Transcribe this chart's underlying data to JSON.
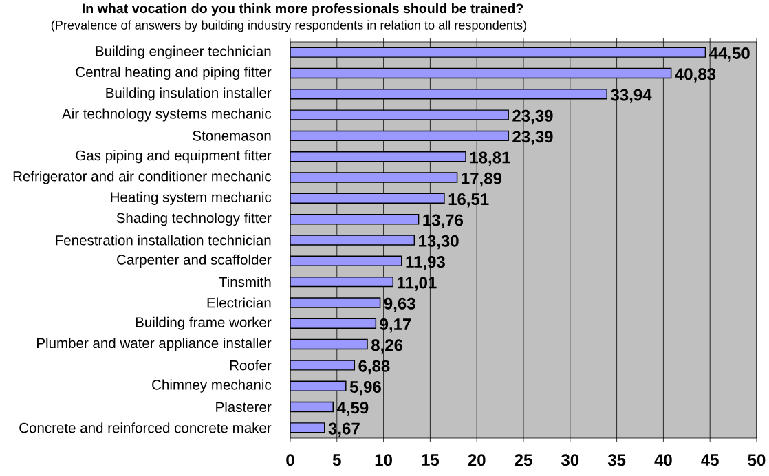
{
  "chart_data": {
    "type": "bar",
    "orientation": "horizontal",
    "title": "In what vocation do you think more professionals should be trained?",
    "subtitle": "(Prevalence of answers by building industry respondents in relation to all respondents)",
    "categories": [
      "Building engineer technician",
      "Central heating and piping fitter",
      "Building insulation installer",
      "Air technology systems mechanic",
      "Stonemason",
      "Gas piping and equipment fitter",
      "Refrigerator and air conditioner mechanic",
      "Heating system mechanic",
      "Shading technology fitter",
      "Fenestration installation technician",
      "Carpenter and scaffolder",
      "Tinsmith",
      "Electrician",
      "Building frame worker",
      "Plumber and water appliance installer",
      "Roofer",
      "Chimney mechanic",
      "Plasterer",
      "Concrete and reinforced concrete maker"
    ],
    "values": [
      44.5,
      40.83,
      33.94,
      23.39,
      23.39,
      18.81,
      17.89,
      16.51,
      13.76,
      13.3,
      11.93,
      11.01,
      9.63,
      9.17,
      8.26,
      6.88,
      5.96,
      4.59,
      3.67
    ],
    "value_labels": [
      "44,50",
      "40,83",
      "33,94",
      "23,39",
      "23,39",
      "18,81",
      "17,89",
      "16,51",
      "13,76",
      "13,30",
      "11,93",
      "11,01",
      "9,63",
      "9,17",
      "8,26",
      "6,88",
      "5,96",
      "4,59",
      "3,67"
    ],
    "color": "#9999ff",
    "xlim": [
      0,
      50
    ],
    "xticks": [
      0,
      5,
      10,
      15,
      20,
      25,
      30,
      35,
      40,
      45,
      50
    ],
    "grid": "x"
  }
}
